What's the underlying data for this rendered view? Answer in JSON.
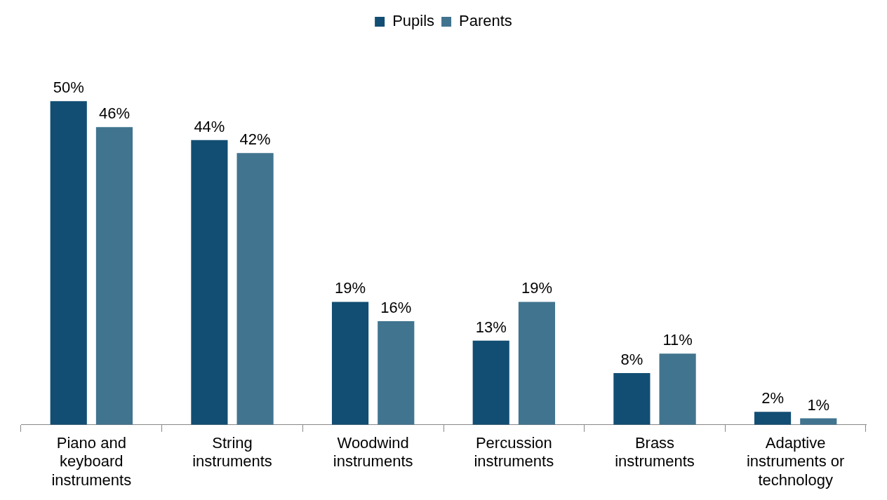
{
  "chart_data": {
    "type": "bar",
    "categories": [
      "Piano and keyboard instruments",
      "String instruments",
      "Woodwind instruments",
      "Percussion instruments",
      "Brass instruments",
      "Adaptive instruments or technology"
    ],
    "series": [
      {
        "name": "Pupils",
        "color": "#124e73",
        "values": [
          50,
          44,
          19,
          13,
          8,
          2
        ],
        "value_labels": [
          "50%",
          "44%",
          "19%",
          "13%",
          "8%",
          "2%"
        ]
      },
      {
        "name": "Parents",
        "color": "#41748f",
        "values": [
          46,
          42,
          16,
          19,
          11,
          1
        ],
        "value_labels": [
          "46%",
          "42%",
          "16%",
          "19%",
          "11%",
          "1%"
        ]
      }
    ],
    "tick_labels": "x",
    "legend": "top"
  }
}
